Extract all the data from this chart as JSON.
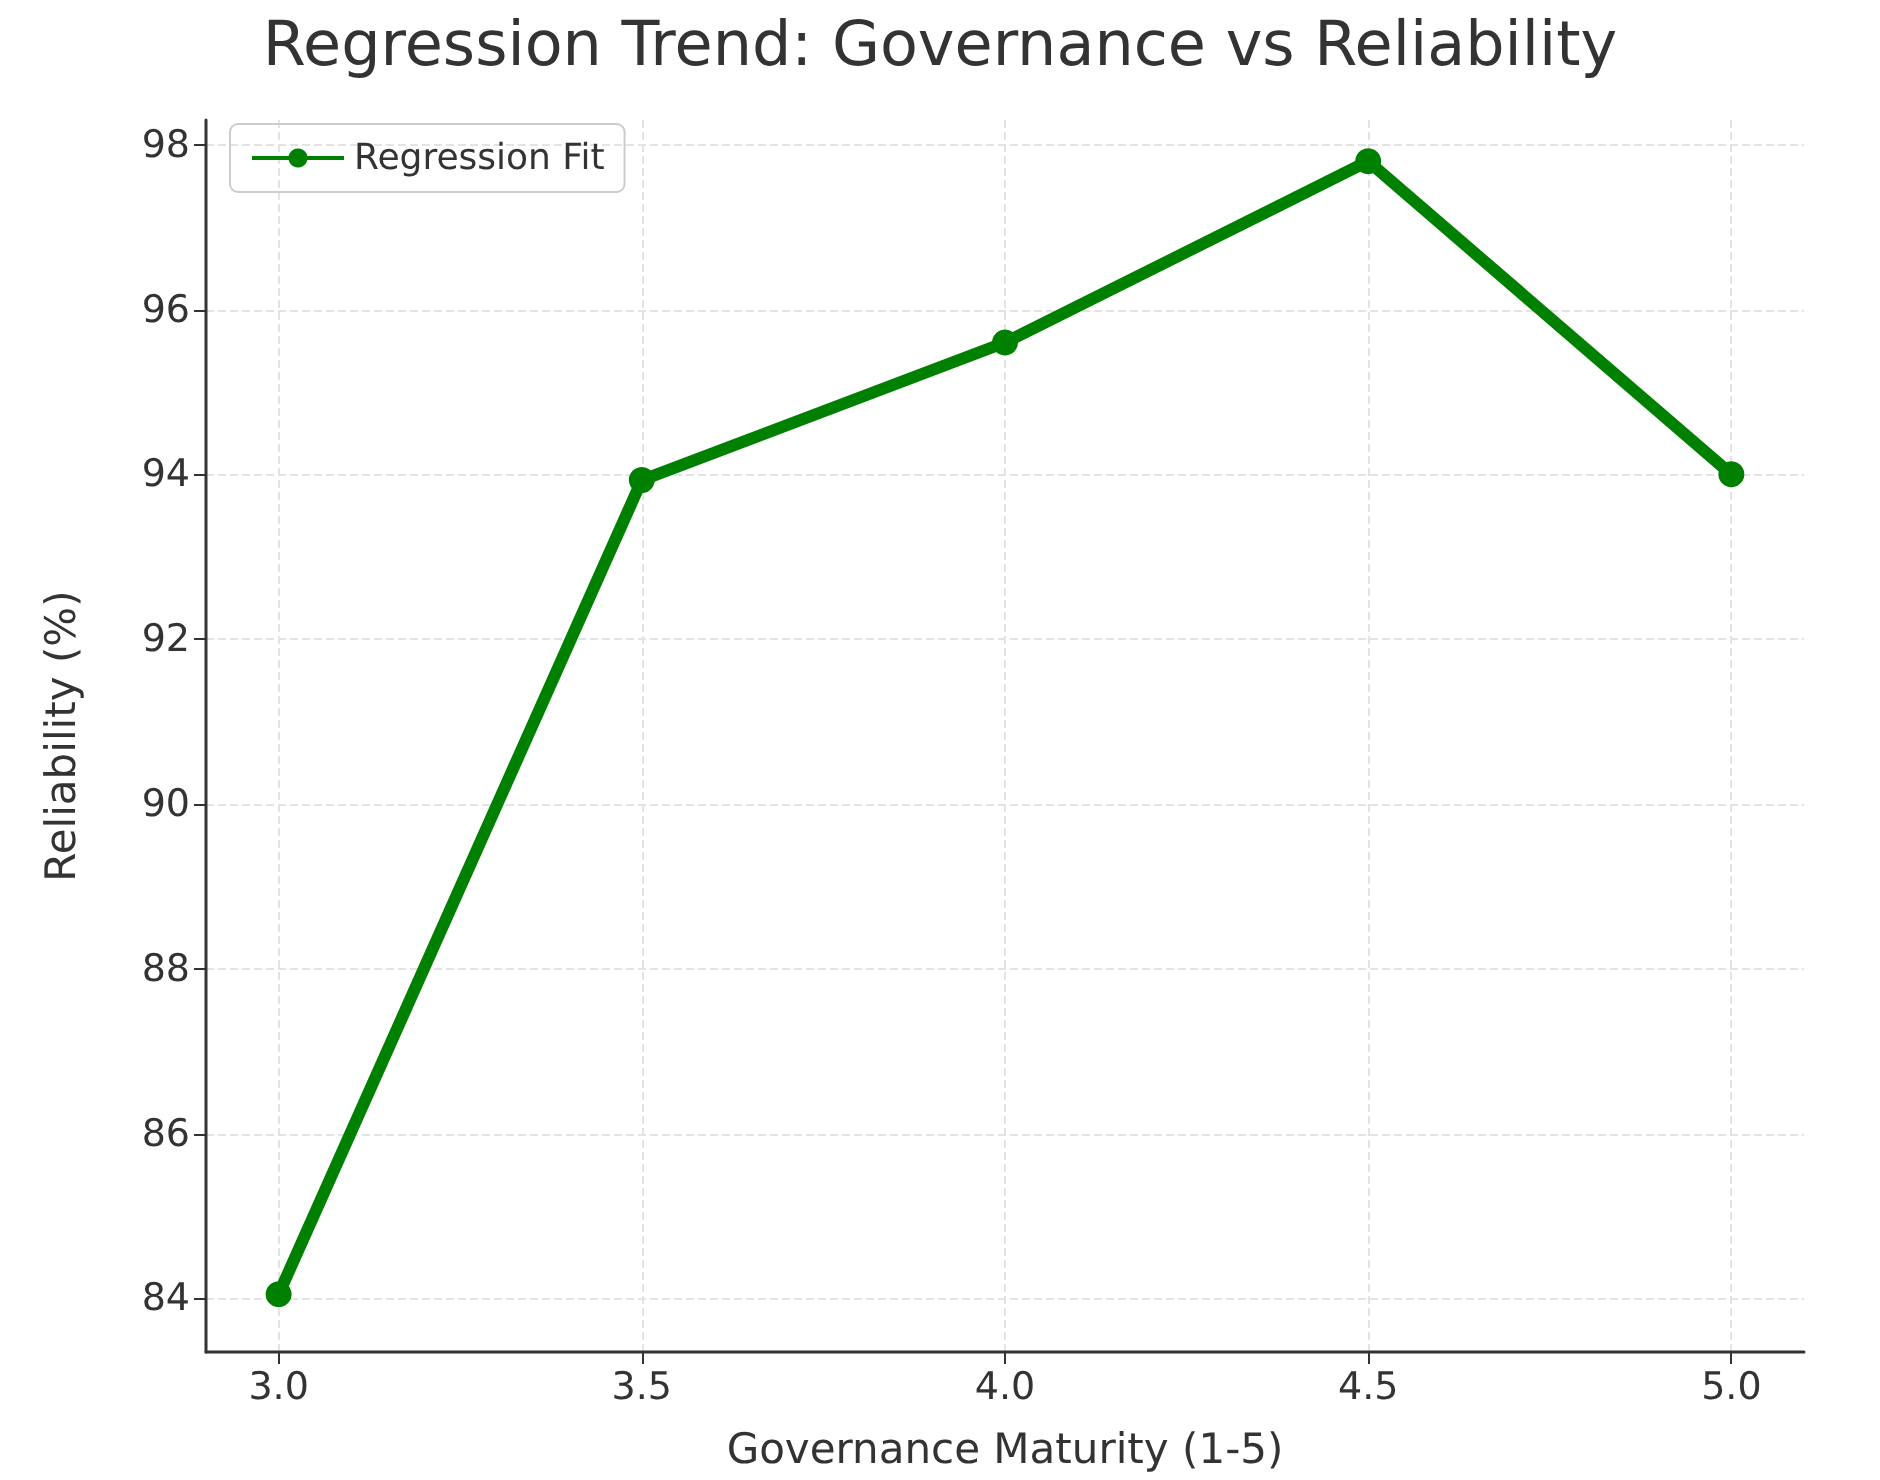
{
  "chart_data": {
    "type": "line",
    "title": "Regression Trend: Governance vs Reliability",
    "xlabel": "Governance Maturity (1-5)",
    "ylabel": "Reliability (%)",
    "x": [
      3.0,
      3.5,
      4.0,
      4.5,
      5.0
    ],
    "series": [
      {
        "name": "Regression Fit",
        "color": "#008000",
        "values": [
          84.05,
          93.93,
          95.6,
          97.8,
          94.0
        ]
      }
    ],
    "xlim": [
      2.9,
      5.1
    ],
    "xticks": [
      {
        "value": 3,
        "label": "3.0"
      },
      {
        "value": 3.5,
        "label": "3.5"
      },
      {
        "value": 4,
        "label": "4.0"
      },
      {
        "value": 4.5,
        "label": "4.5"
      },
      {
        "value": 5,
        "label": "5.0"
      }
    ],
    "ylim": [
      83.35,
      98.3
    ],
    "yticks": [
      84,
      86,
      88,
      90,
      92,
      94,
      96,
      98
    ],
    "grid": true,
    "legend": "top left",
    "marker": "circle",
    "line_style": "solid"
  }
}
